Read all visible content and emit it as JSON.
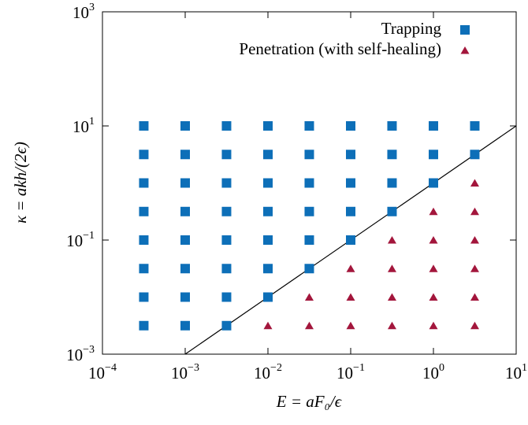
{
  "chart_data": {
    "type": "scatter",
    "x_label": "E = aF₀/ϵ",
    "y_label": "κ = akh/(2ϵ)",
    "xscale": "log",
    "yscale": "log",
    "xlim": [
      0.0001,
      10
    ],
    "ylim": [
      0.001,
      1000
    ],
    "xticks": [
      {
        "value": 0.0001,
        "label": "10",
        "exponent": "−4"
      },
      {
        "value": 0.001,
        "label": "10",
        "exponent": "−3"
      },
      {
        "value": 0.01,
        "label": "10",
        "exponent": "−2"
      },
      {
        "value": 0.1,
        "label": "10",
        "exponent": "−1"
      },
      {
        "value": 1,
        "label": "10",
        "exponent": "0"
      },
      {
        "value": 10,
        "label": "10",
        "exponent": "1"
      }
    ],
    "yticks": [
      {
        "value": 0.001,
        "label": "10",
        "exponent": "−3"
      },
      {
        "value": 0.1,
        "label": "10",
        "exponent": "−1"
      },
      {
        "value": 10,
        "label": "10",
        "exponent": "1"
      },
      {
        "value": 1000,
        "label": "10",
        "exponent": "3"
      }
    ],
    "legend": "upper right",
    "series": [
      {
        "name": "Trapping",
        "color": "#0d6fb8",
        "marker": "square",
        "x": [
          0.000316,
          0.000316,
          0.000316,
          0.000316,
          0.000316,
          0.000316,
          0.000316,
          0.000316,
          0.001,
          0.001,
          0.001,
          0.001,
          0.001,
          0.001,
          0.001,
          0.001,
          0.00316,
          0.00316,
          0.00316,
          0.00316,
          0.00316,
          0.00316,
          0.00316,
          0.00316,
          0.01,
          0.01,
          0.01,
          0.01,
          0.01,
          0.01,
          0.01,
          0.0316,
          0.0316,
          0.0316,
          0.0316,
          0.0316,
          0.0316,
          0.1,
          0.1,
          0.1,
          0.1,
          0.1,
          0.316,
          0.316,
          0.316,
          0.316,
          1,
          1,
          1,
          3.16,
          3.16
        ],
        "values": [
          10,
          3.16,
          1,
          0.316,
          0.1,
          0.0316,
          0.01,
          0.00316,
          10,
          3.16,
          1,
          0.316,
          0.1,
          0.0316,
          0.01,
          0.00316,
          10,
          3.16,
          1,
          0.316,
          0.1,
          0.0316,
          0.01,
          0.00316,
          10,
          3.16,
          1,
          0.316,
          0.1,
          0.0316,
          0.01,
          10,
          3.16,
          1,
          0.316,
          0.1,
          0.0316,
          10,
          3.16,
          1,
          0.316,
          0.1,
          10,
          3.16,
          1,
          0.316,
          10,
          3.16,
          1,
          10,
          3.16
        ]
      },
      {
        "name": "Penetration (with self-healing)",
        "color": "#a3163c",
        "marker": "triangle",
        "x": [
          0.01,
          0.0316,
          0.0316,
          0.1,
          0.1,
          0.1,
          0.316,
          0.316,
          0.316,
          0.316,
          1,
          1,
          1,
          1,
          1,
          3.16,
          3.16,
          3.16,
          3.16,
          3.16,
          3.16
        ],
        "values": [
          0.00316,
          0.01,
          0.00316,
          0.0316,
          0.01,
          0.00316,
          0.1,
          0.0316,
          0.01,
          0.00316,
          0.316,
          0.1,
          0.0316,
          0.01,
          0.00316,
          1,
          0.316,
          0.1,
          0.0316,
          0.01,
          0.00316
        ]
      }
    ],
    "reference_line": {
      "color": "#000000",
      "x": [
        0.001,
        10
      ],
      "values": [
        0.001,
        10
      ]
    }
  }
}
